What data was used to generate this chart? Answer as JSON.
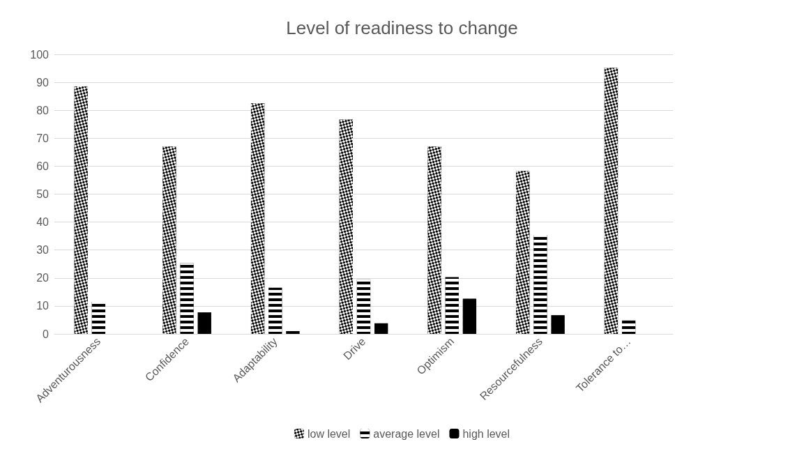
{
  "chart_data": {
    "type": "bar",
    "title": "Level of readiness to change",
    "categories": [
      "Adventurousness",
      "Confidence",
      "Adaptability",
      "Drive",
      "Optimism",
      "Resourcefulness",
      "Tolerance to…"
    ],
    "series": [
      {
        "name": "low level",
        "color": "#000000",
        "values": [
          88.5,
          67,
          82.5,
          76.7,
          67,
          58.3,
          95.2
        ]
      },
      {
        "name": "average level",
        "color": "#000000",
        "values": [
          11.5,
          25.3,
          16.5,
          19.5,
          20.3,
          35.4,
          4.8
        ]
      },
      {
        "name": "high level",
        "color": "#000000",
        "values": [
          0,
          7.7,
          1,
          3.8,
          12.6,
          6.7,
          0
        ]
      }
    ],
    "ylim": [
      0,
      100
    ],
    "yticks": [
      0,
      10,
      20,
      30,
      40,
      50,
      60,
      70,
      80,
      90,
      100
    ],
    "grid": "y",
    "legend": "bottom"
  }
}
